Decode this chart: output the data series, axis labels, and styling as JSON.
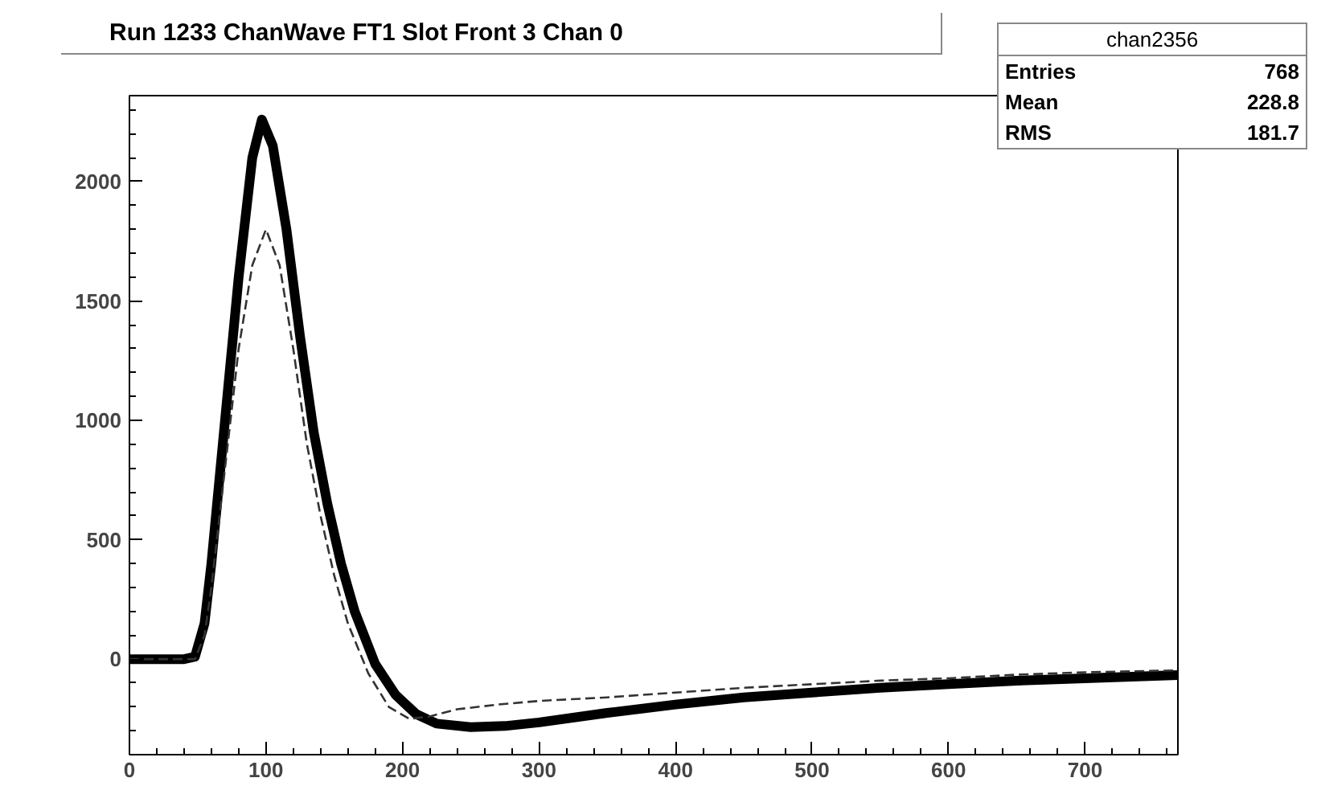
{
  "chart_data": {
    "type": "line",
    "title": "Run 1233  ChanWave FT1 Slot Front 3 Chan 0",
    "annotations": [
      "chan2356",
      "Entries",
      "768",
      "Mean",
      "228.8",
      "RMS",
      "181.7"
    ],
    "xlim": [
      0,
      768
    ],
    "ylim": [
      -400,
      2360
    ],
    "xticks": [
      0,
      100,
      200,
      300,
      400,
      500,
      600,
      700
    ],
    "yticks": [
      0,
      500,
      1000,
      1500,
      2000
    ],
    "grid": false,
    "marker": "none",
    "series": [
      {
        "color": "#000000",
        "line_style": "solid",
        "x": [
          0,
          40,
          48,
          55,
          60,
          70,
          80,
          90,
          97,
          105,
          115,
          125,
          135,
          145,
          155,
          165,
          180,
          195,
          210,
          225,
          250,
          275,
          300,
          350,
          400,
          450,
          500,
          550,
          600,
          650,
          700,
          768
        ],
        "values": [
          0,
          0,
          10,
          150,
          400,
          1000,
          1600,
          2100,
          2260,
          2150,
          1800,
          1350,
          950,
          650,
          400,
          200,
          -20,
          -150,
          -230,
          -270,
          -285,
          -280,
          -265,
          -225,
          -190,
          -160,
          -140,
          -120,
          -105,
          -90,
          -80,
          -67
        ]
      },
      {
        "color": "#333333",
        "line_style": "dashed",
        "x": [
          0,
          48,
          55,
          60,
          70,
          80,
          90,
          100,
          110,
          120,
          130,
          140,
          150,
          160,
          175,
          190,
          205,
          220,
          240,
          270,
          300,
          350,
          400,
          450,
          500,
          550,
          600,
          650,
          700,
          768
        ],
        "values": [
          0,
          0,
          100,
          300,
          800,
          1300,
          1650,
          1800,
          1650,
          1300,
          900,
          600,
          350,
          150,
          -60,
          -200,
          -250,
          -240,
          -210,
          -190,
          -175,
          -160,
          -140,
          -120,
          -105,
          -90,
          -80,
          -65,
          -55,
          -47
        ]
      }
    ]
  }
}
